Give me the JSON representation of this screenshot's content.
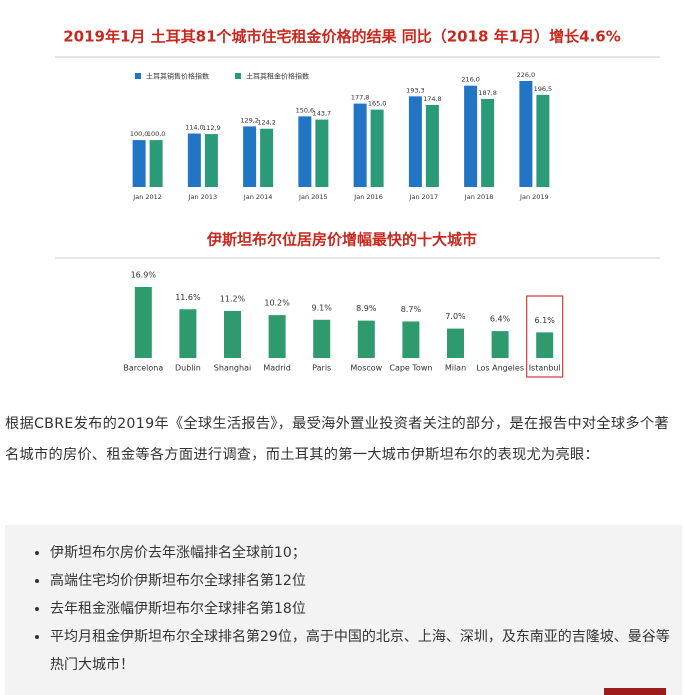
{
  "chart_data": [
    {
      "type": "grouped-bar",
      "title": "2019年1月 土耳其81个城市住宅租金价格的结果 同比（2018 年1月）增长4.6%",
      "title_color": "#c8281e",
      "categories": [
        "Jan 2012",
        "Jan 2013",
        "Jan 2014",
        "Jan 2015",
        "Jan 2016",
        "Jan 2017",
        "Jan 2018",
        "Jan 2019"
      ],
      "series": [
        {
          "name": "土耳其销售价格指数",
          "color": "#2274c4",
          "values": [
            100.0,
            114.0,
            129.2,
            150.6,
            177.8,
            193.3,
            216.0,
            226.0
          ],
          "value_labels": [
            "100,0",
            "114,0",
            "129,2",
            "150,6",
            "177,8",
            "193,3",
            "216,0",
            "226,0"
          ]
        },
        {
          "name": "土耳其租金价格指数",
          "color": "#2a9a78",
          "values": [
            100.0,
            112.9,
            124.2,
            143.7,
            165.0,
            174.8,
            187.8,
            196.5
          ],
          "value_labels": [
            "100,0",
            "112,9",
            "124,2",
            "143,7",
            "165,0",
            "174,8",
            "187,8",
            "196,5"
          ]
        }
      ]
    },
    {
      "type": "bar",
      "title": "伊斯坦布尔位居房价增幅最快的十大城市",
      "title_color": "#c8281e",
      "categories": [
        "Barcelona",
        "Dublin",
        "Shanghai",
        "Madrid",
        "Paris",
        "Moscow",
        "Cape Town",
        "Milan",
        "Los Angeles",
        "Istanbul"
      ],
      "values": [
        16.9,
        11.6,
        11.2,
        10.2,
        9.1,
        8.9,
        8.7,
        7.0,
        6.4,
        6.1
      ],
      "value_labels": [
        "16.9%",
        "11.6%",
        "11.2%",
        "10.2%",
        "9.1%",
        "8.9%",
        "8.7%",
        "7.0%",
        "6.4%",
        "6.1%"
      ],
      "color": "#2e9a6e",
      "highlight_index": 9,
      "highlight_color": "#d03a3a"
    }
  ],
  "paragraph": "根据CBRE发布的2019年《全球生活报告》，最受海外置业投资者关注的部分，是在报告中对全球多个著名城市的房价、租金等各方面进行调查，而土耳其的第一大城市伊斯坦布尔的表现尤为亮眼：",
  "bullets": [
    "伊斯坦布尔房价去年涨幅排名全球前10；",
    "高端住宅均价伊斯坦布尔全球排名第12位",
    "去年租金涨幅伊斯坦布尔全球排名第18位",
    "平均月租金伊斯坦布尔全球排名第29位，高于中国的北京、上海、深圳，及东南亚的吉隆坡、曼谷等热门大城市！"
  ]
}
